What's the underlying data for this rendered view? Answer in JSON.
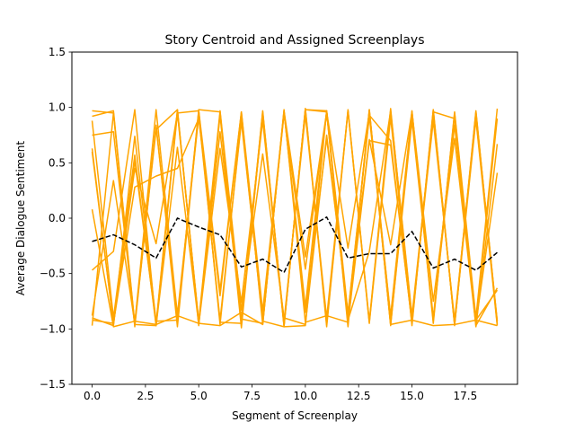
{
  "chart_data": {
    "type": "line",
    "title": "Story Centroid and Assigned Screenplays",
    "xlabel": "Segment of Screenplay",
    "ylabel": "Average Dialogue Sentiment",
    "xlim": [
      -0.95,
      19.95
    ],
    "ylim": [
      -1.5,
      1.5
    ],
    "x": [
      0,
      1,
      2,
      3,
      4,
      5,
      6,
      7,
      8,
      9,
      10,
      11,
      12,
      13,
      14,
      15,
      16,
      17,
      18,
      19
    ],
    "xticks": [
      0.0,
      2.5,
      5.0,
      7.5,
      10.0,
      12.5,
      15.0,
      17.5
    ],
    "xtick_labels": [
      "0.0",
      "2.5",
      "5.0",
      "7.5",
      "10.0",
      "12.5",
      "15.0",
      "17.5"
    ],
    "yticks": [
      -1.5,
      -1.0,
      -0.5,
      0.0,
      0.5,
      1.0,
      1.5
    ],
    "ytick_labels": [
      "−1.5",
      "−1.0",
      "−0.5",
      "0.0",
      "0.5",
      "1.0",
      "1.5"
    ],
    "grid": false,
    "assigned_color": "#ffa500",
    "centroid_color": "#000000",
    "centroid": {
      "style": "dashed",
      "values": [
        -0.21,
        -0.15,
        -0.24,
        -0.36,
        0.0,
        -0.08,
        -0.15,
        -0.44,
        -0.37,
        -0.49,
        -0.1,
        0.01,
        -0.36,
        -0.32,
        -0.32,
        -0.12,
        -0.45,
        -0.37,
        -0.47,
        -0.31
      ]
    },
    "series": [
      {
        "values": [
          0.97,
          0.95,
          -0.98,
          0.83,
          -0.93,
          0.98,
          0.96,
          -0.93,
          0.96,
          -0.97,
          0.98,
          0.96,
          -0.92,
          0.97,
          -0.9,
          0.95,
          -0.95,
          0.96,
          -0.9,
          0.99
        ]
      },
      {
        "values": [
          -0.47,
          -0.3,
          0.98,
          -0.97,
          0.97,
          -0.95,
          0.93,
          -0.99,
          0.95,
          -0.98,
          0.99,
          -0.96,
          0.98,
          -0.93,
          0.99,
          -0.94,
          0.98,
          -0.97,
          0.96,
          -0.96
        ]
      },
      {
        "values": [
          0.63,
          -0.96,
          0.52,
          -0.95,
          0.98,
          -0.97,
          0.95,
          -0.95,
          0.93,
          -0.96,
          0.98,
          0.97,
          -0.98,
          0.98,
          -0.97,
          0.96,
          -0.93,
          0.95,
          -0.98,
          0.67
        ]
      },
      {
        "values": [
          -0.97,
          0.95,
          -0.96,
          0.84,
          -0.98,
          0.96,
          -0.94,
          -0.95,
          0.97,
          -0.97,
          0.99,
          -0.98,
          0.97,
          -0.95,
          0.91,
          -0.97,
          0.98,
          -0.96,
          0.95,
          -0.93
        ]
      },
      {
        "values": [
          0.92,
          0.97,
          -0.95,
          0.8,
          0.98,
          -0.94,
          0.78,
          -0.91,
          -0.95,
          0.96,
          -0.8,
          0.97,
          -0.86,
          0.93,
          0.7,
          -0.95,
          0.96,
          0.9,
          -0.92,
          0.9
        ]
      },
      {
        "values": [
          -0.9,
          -0.97,
          0.74,
          -0.93,
          -0.92,
          0.97,
          -0.96,
          0.9,
          -0.93,
          -0.98,
          -0.97,
          0.97,
          -0.92,
          -0.3,
          0.97,
          -0.88,
          0.92,
          -0.95,
          0.97,
          -0.95
        ]
      },
      {
        "values": [
          0.08,
          -0.98,
          -0.93,
          -0.96,
          -0.88,
          -0.95,
          -0.97,
          -0.85,
          -0.96,
          0.98,
          -0.94,
          -0.88,
          -0.94,
          0.98,
          -0.96,
          -0.92,
          -0.97,
          -0.96,
          -0.92,
          -0.97
        ]
      },
      {
        "values": [
          0.75,
          0.78,
          -0.96,
          -0.97,
          0.95,
          -0.93,
          0.97,
          -0.83,
          0.58,
          -0.9,
          -0.96,
          0.75,
          -0.87,
          0.92,
          -0.88,
          0.97,
          -0.9,
          0.93,
          -0.92,
          -0.65
        ]
      },
      {
        "values": [
          -0.88,
          0.34,
          -0.95,
          0.98,
          -0.87,
          0.92,
          -0.92,
          0.87,
          -0.91,
          0.94,
          -0.46,
          0.95,
          -0.95,
          0.7,
          0.66,
          -0.94,
          0.95,
          -0.96,
          0.89,
          -0.97
        ]
      },
      {
        "values": [
          0.88,
          -0.9,
          0.57,
          -0.97,
          0.64,
          -0.96,
          0.63,
          -0.76,
          0.88,
          -0.93,
          0.93,
          -0.9,
          0.97,
          -0.94,
          0.96,
          -0.9,
          0.88,
          -0.92,
          0.91,
          -0.93
        ]
      },
      {
        "values": [
          0.6,
          -0.95,
          0.28,
          0.38,
          0.45,
          0.9,
          -0.7,
          0.96,
          -0.96,
          0.97,
          -0.35,
          0.96,
          -0.27,
          0.95,
          -0.96,
          0.88,
          -0.91,
          0.84,
          -0.95,
          0.41
        ]
      },
      {
        "values": [
          -0.92,
          -0.95,
          0.45,
          -0.23,
          0.95,
          0.97,
          -0.65,
          0.96,
          -0.84,
          0.96,
          -0.85,
          0.72,
          -0.86,
          0.71,
          -0.24,
          0.96,
          -0.75,
          0.72,
          -0.97,
          -0.63
        ]
      }
    ]
  }
}
